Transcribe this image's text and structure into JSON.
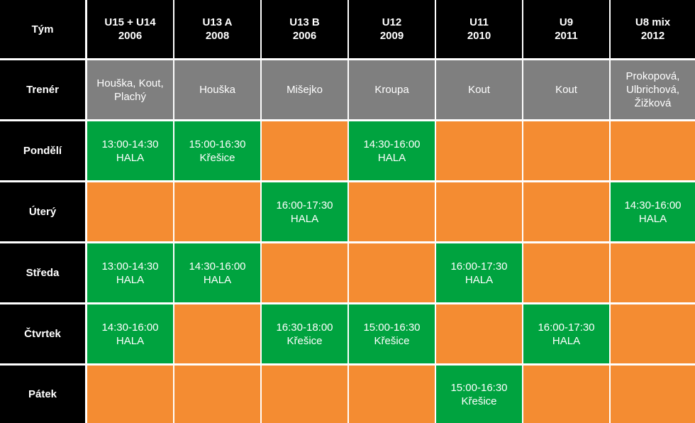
{
  "colors": {
    "header": "#000000",
    "trainer": "#7f7f7f",
    "training": "#00a33f",
    "free": "#f48c32",
    "text": "#ffffff"
  },
  "corner_label": "Tým",
  "teams": [
    {
      "name": "U15 + U14",
      "year": "2006"
    },
    {
      "name": "U13 A",
      "year": "2008"
    },
    {
      "name": "U13 B",
      "year": "2006"
    },
    {
      "name": "U12",
      "year": "2009"
    },
    {
      "name": "U11",
      "year": "2010"
    },
    {
      "name": "U9",
      "year": "2011"
    },
    {
      "name": "U8 mix",
      "year": "2012"
    }
  ],
  "trainer_label": "Trenér",
  "trainers": [
    [
      "Houška, Kout,",
      "Plachý"
    ],
    [
      "Houška"
    ],
    [
      "Mišejko"
    ],
    [
      "Kroupa"
    ],
    [
      "Kout"
    ],
    [
      "Kout"
    ],
    [
      "Prokopová,",
      "Ulbrichová,",
      "Žižková"
    ]
  ],
  "days": [
    {
      "day": "Pondělí",
      "sessions": [
        {
          "time": "13:00-14:30",
          "place": "HALA"
        },
        {
          "time": "15:00-16:30",
          "place": "Křešice"
        },
        null,
        {
          "time": "14:30-16:00",
          "place": "HALA"
        },
        null,
        null,
        null
      ]
    },
    {
      "day": "Úterý",
      "sessions": [
        null,
        null,
        {
          "time": "16:00-17:30",
          "place": "HALA"
        },
        null,
        null,
        null,
        {
          "time": "14:30-16:00",
          "place": "HALA"
        }
      ]
    },
    {
      "day": "Středa",
      "sessions": [
        {
          "time": "13:00-14:30",
          "place": "HALA"
        },
        {
          "time": "14:30-16:00",
          "place": "HALA"
        },
        null,
        null,
        {
          "time": "16:00-17:30",
          "place": "HALA"
        },
        null,
        null
      ]
    },
    {
      "day": "Čtvrtek",
      "sessions": [
        {
          "time": "14:30-16:00",
          "place": "HALA"
        },
        null,
        {
          "time": "16:30-18:00",
          "place": "Křešice"
        },
        {
          "time": "15:00-16:30",
          "place": "Křešice"
        },
        null,
        {
          "time": "16:00-17:30",
          "place": "HALA"
        },
        null
      ]
    },
    {
      "day": "Pátek",
      "sessions": [
        null,
        null,
        null,
        null,
        {
          "time": "15:00-16:30",
          "place": "Křešice"
        },
        null,
        null
      ]
    }
  ]
}
